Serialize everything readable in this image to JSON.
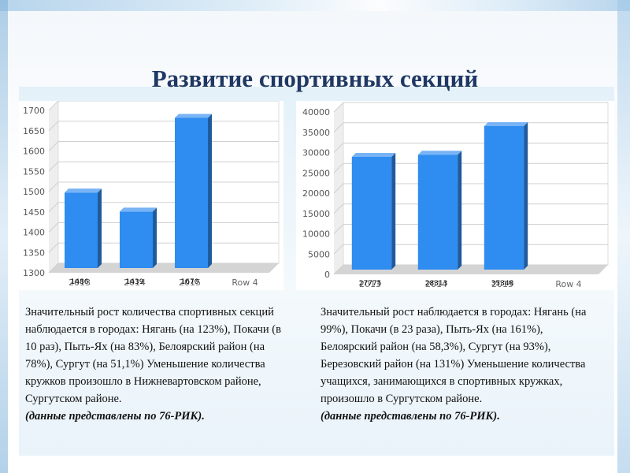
{
  "slide": {
    "title": "Развитие спортивных секций"
  },
  "chart_data": [
    {
      "type": "bar",
      "title": "",
      "xlabel": "",
      "ylabel": "",
      "ylim": [
        1300,
        1700
      ],
      "y_ticks": [
        "1700",
        "1650",
        "1600",
        "1550",
        "1500",
        "1450",
        "1400",
        "1350",
        "1300"
      ],
      "categories": [
        "2013",
        "2014",
        "2015",
        "Row 4"
      ],
      "values": [
        1486,
        1439,
        1670,
        null
      ],
      "data_labels": [
        "1486",
        "1439",
        "1670",
        ""
      ],
      "grid": true,
      "bar_color": "#2f8cf0"
    },
    {
      "type": "bar",
      "title": "",
      "xlabel": "",
      "ylabel": "",
      "ylim": [
        0,
        40000
      ],
      "y_ticks": [
        "40000",
        "35000",
        "30000",
        "25000",
        "20000",
        "15000",
        "10000",
        "5000",
        "0"
      ],
      "categories": [
        "2013",
        "2014",
        "2015",
        "Row 4"
      ],
      "values": [
        27775,
        28313,
        35348,
        null
      ],
      "data_labels": [
        "27775",
        "28313",
        "35348",
        ""
      ],
      "grid": true,
      "bar_color": "#2f8cf0"
    }
  ],
  "text_left": {
    "body": "Значительный рост количества спортивных секций наблюдается в городах: Нягань (на 123%), Покачи (в 10 раз), Пыть-Ях (на 83%), Белоярский район (на 78%), Сургут (на 51,1%) Уменьшение количества кружков произошло в Нижневартовском районе, Сургутском районе.",
    "note": "(данные представлены по 76-РИК)."
  },
  "text_right": {
    "body": "Значительный рост наблюдается в городах: Нягань (на 99%), Покачи (в 23 раза), Пыть-Ях (на 161%), Белоярский район (на 58,3%), Сургут (на 93%), Березовский район (на 131%) Уменьшение количества учащихся, занимающихся в спортивных кружках, произошло в Сургутском  районе.",
    "note": "(данные представлены по 76-РИК)."
  }
}
